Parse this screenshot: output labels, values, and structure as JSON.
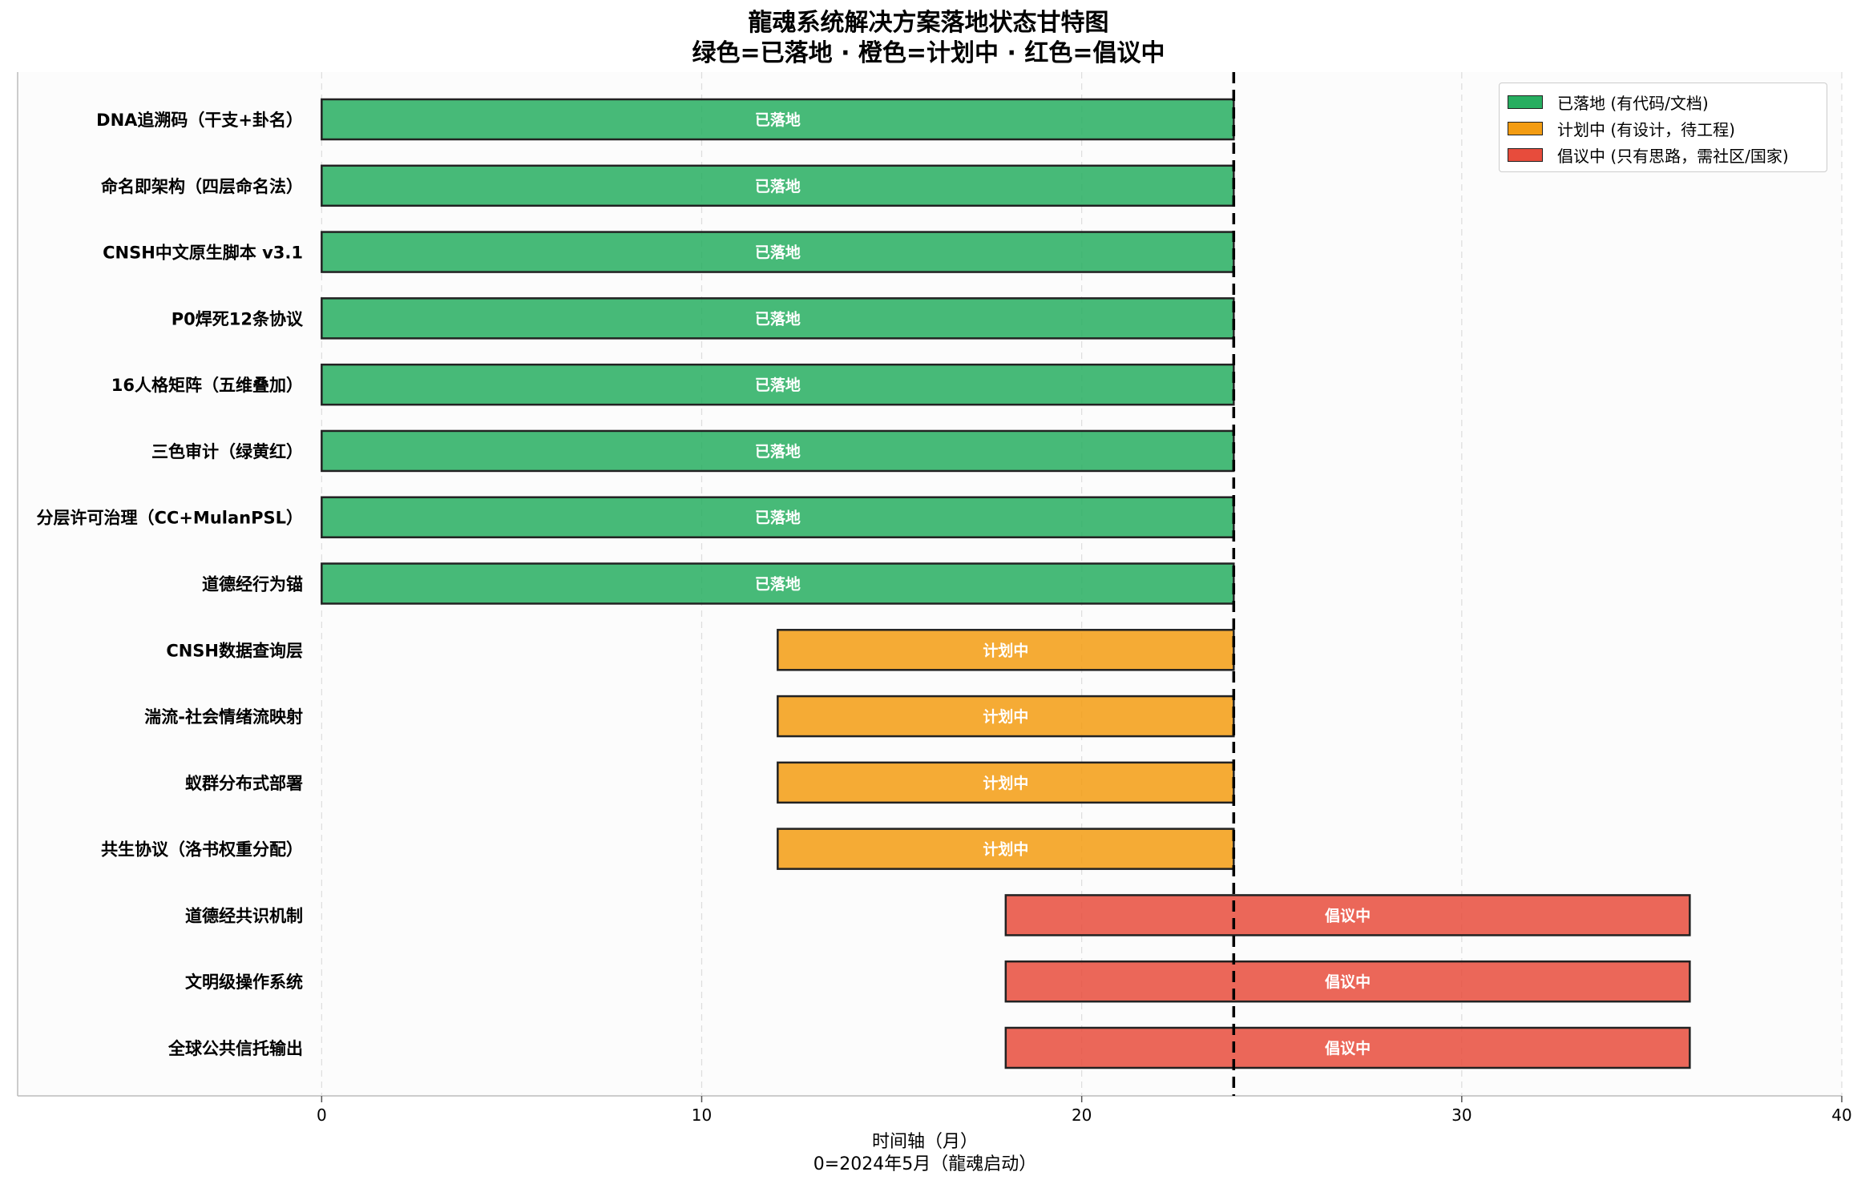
{
  "chart_data": {
    "type": "gantt",
    "title_line1": "龍魂系统解决方案落地状态甘特图",
    "title_line2": "绿色=已落地 · 橙色=计划中 · 红色=倡议中",
    "xlabel_line1": "时间轴（月）",
    "xlabel_line2": "0=2024年5月（龍魂启动）",
    "xlim": [
      -8,
      40
    ],
    "xticks": [
      0,
      10,
      20,
      30,
      40
    ],
    "reference_line": 24,
    "grid": "vertical dashed",
    "legend_position": "top-right",
    "colors": {
      "landed": "#27ae60",
      "planned": "#f39c12",
      "proposed": "#e74c3c"
    },
    "legend": [
      {
        "key": "landed",
        "label": "已落地 (有代码/文档)"
      },
      {
        "key": "planned",
        "label": "计划中 (有设计，待工程)"
      },
      {
        "key": "proposed",
        "label": "倡议中 (只有思路，需社区/国家)"
      }
    ],
    "status_labels": {
      "landed": "已落地",
      "planned": "计划中",
      "proposed": "倡议中"
    },
    "tasks": [
      {
        "name": "DNA追溯码（干支+卦名）",
        "start": 0,
        "end": 24,
        "status": "landed"
      },
      {
        "name": "命名即架构（四层命名法）",
        "start": 0,
        "end": 24,
        "status": "landed"
      },
      {
        "name": "CNSH中文原生脚本 v3.1",
        "start": 0,
        "end": 24,
        "status": "landed"
      },
      {
        "name": "P0焊死12条协议",
        "start": 0,
        "end": 24,
        "status": "landed"
      },
      {
        "name": "16人格矩阵（五维叠加）",
        "start": 0,
        "end": 24,
        "status": "landed"
      },
      {
        "name": "三色审计（绿黄红）",
        "start": 0,
        "end": 24,
        "status": "landed"
      },
      {
        "name": "分层许可治理（CC+MulanPSL）",
        "start": 0,
        "end": 24,
        "status": "landed"
      },
      {
        "name": "道德经行为锚",
        "start": 0,
        "end": 24,
        "status": "landed"
      },
      {
        "name": "CNSH数据查询层",
        "start": 12,
        "end": 24,
        "status": "planned"
      },
      {
        "name": "湍流-社会情绪流映射",
        "start": 12,
        "end": 24,
        "status": "planned"
      },
      {
        "name": "蚁群分布式部署",
        "start": 12,
        "end": 24,
        "status": "planned"
      },
      {
        "name": "共生协议（洛书权重分配）",
        "start": 12,
        "end": 24,
        "status": "planned"
      },
      {
        "name": "道德经共识机制",
        "start": 18,
        "end": 36,
        "status": "proposed"
      },
      {
        "name": "文明级操作系统",
        "start": 18,
        "end": 36,
        "status": "proposed"
      },
      {
        "name": "全球公共信托输出",
        "start": 18,
        "end": 36,
        "status": "proposed"
      }
    ]
  }
}
